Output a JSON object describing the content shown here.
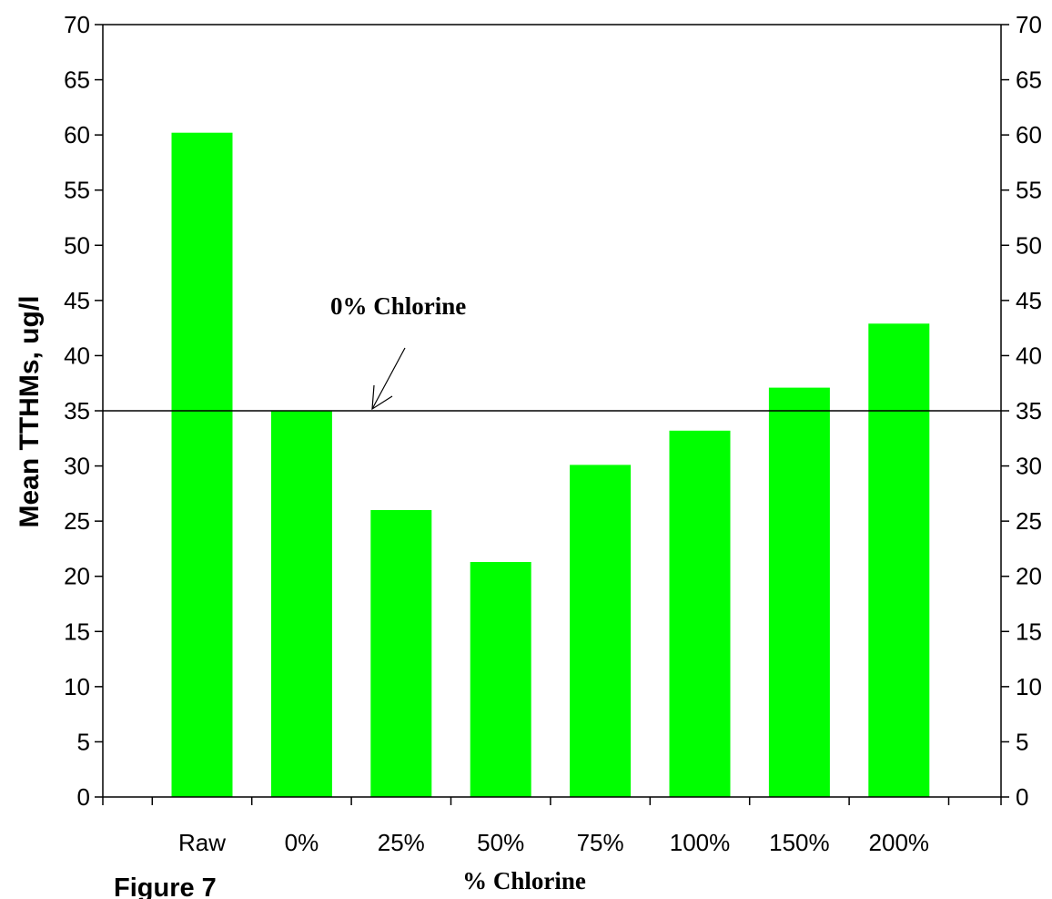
{
  "figure_label": "Figure 7",
  "chart_data": {
    "type": "bar",
    "title": "",
    "xlabel": "% Chlorine",
    "ylabel": "Mean TTHMs, ug/l",
    "categories": [
      "Raw",
      "0%",
      "25%",
      "50%",
      "75%",
      "100%",
      "150%",
      "200%"
    ],
    "values": [
      60.2,
      35.0,
      26.0,
      21.3,
      30.1,
      33.2,
      37.1,
      42.9
    ],
    "ylim": [
      0,
      70
    ],
    "yticks": [
      0,
      5,
      10,
      15,
      20,
      25,
      30,
      35,
      40,
      45,
      50,
      55,
      60,
      65,
      70
    ],
    "right_axis_ticks": [
      0,
      5,
      10,
      15,
      20,
      25,
      30,
      35,
      40,
      45,
      50,
      55,
      60,
      65,
      70
    ],
    "bar_color": "#00ff00",
    "grid": false,
    "legend": "none",
    "reference_line": {
      "value": 35,
      "label": "0% Chlorine"
    }
  }
}
